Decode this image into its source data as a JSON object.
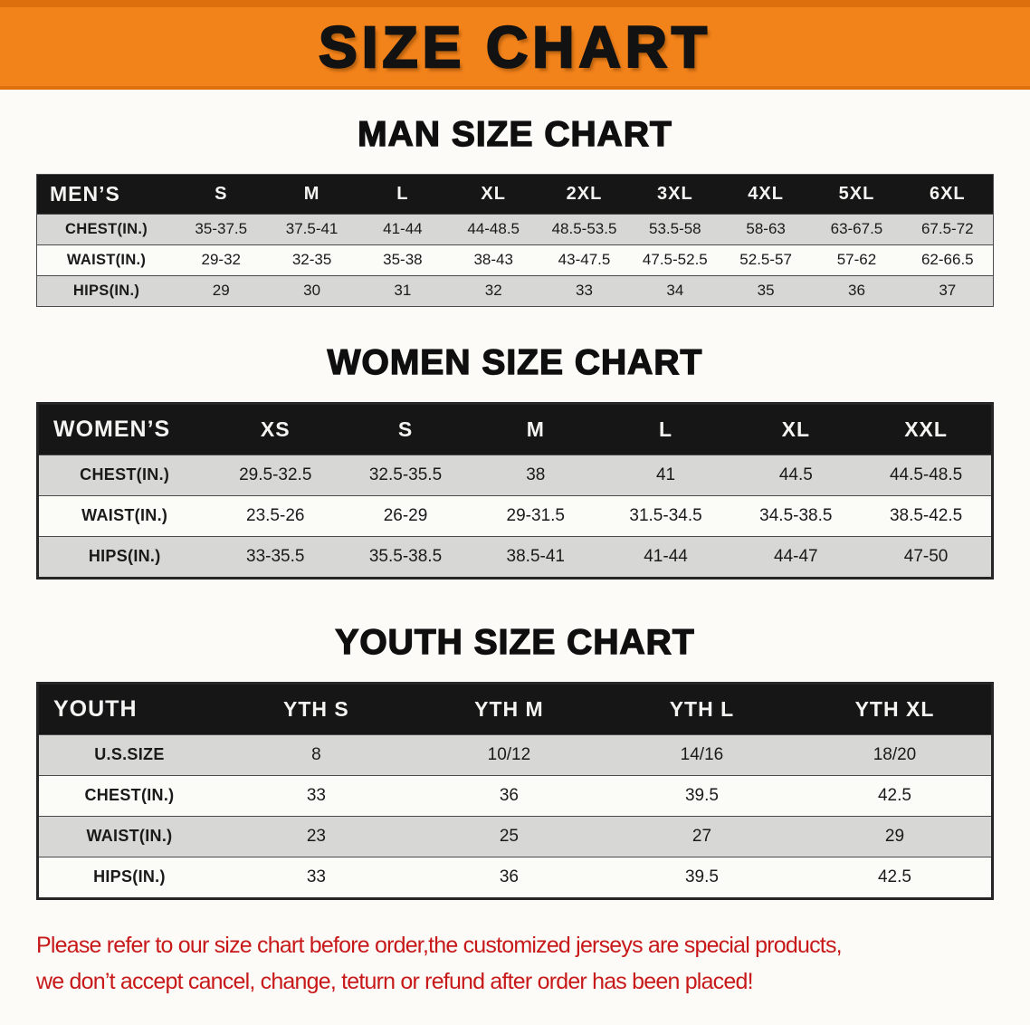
{
  "banner": {
    "title": "SIZE CHART"
  },
  "sections": [
    {
      "heading": "MAN SIZE CHART",
      "table_name": "men-size-table",
      "header": [
        "MEN’S",
        "S",
        "M",
        "L",
        "XL",
        "2XL",
        "3XL",
        "4XL",
        "5XL",
        "6XL"
      ],
      "rows": [
        [
          "CHEST(IN.)",
          "35-37.5",
          "37.5-41",
          "41-44",
          "44-48.5",
          "48.5-53.5",
          "53.5-58",
          "58-63",
          "63-67.5",
          "67.5-72"
        ],
        [
          "WAIST(IN.)",
          "29-32",
          "32-35",
          "35-38",
          "38-43",
          "43-47.5",
          "47.5-52.5",
          "52.5-57",
          "57-62",
          "62-66.5"
        ],
        [
          "HIPS(IN.)",
          "29",
          "30",
          "31",
          "32",
          "33",
          "34",
          "35",
          "36",
          "37"
        ]
      ]
    },
    {
      "heading": "WOMEN SIZE CHART",
      "table_name": "women-size-table",
      "header": [
        "WOMEN’S",
        "XS",
        "S",
        "M",
        "L",
        "XL",
        "XXL"
      ],
      "rows": [
        [
          "CHEST(IN.)",
          "29.5-32.5",
          "32.5-35.5",
          "38",
          "41",
          "44.5",
          "44.5-48.5"
        ],
        [
          "WAIST(IN.)",
          "23.5-26",
          "26-29",
          "29-31.5",
          "31.5-34.5",
          "34.5-38.5",
          "38.5-42.5"
        ],
        [
          "HIPS(IN.)",
          "33-35.5",
          "35.5-38.5",
          "38.5-41",
          "41-44",
          "44-47",
          "47-50"
        ]
      ]
    },
    {
      "heading": "YOUTH SIZE CHART",
      "table_name": "youth-size-table",
      "header": [
        "YOUTH",
        "YTH S",
        "YTH M",
        "YTH L",
        "YTH XL"
      ],
      "rows": [
        [
          "U.S.SIZE",
          "8",
          "10/12",
          "14/16",
          "18/20"
        ],
        [
          "CHEST(IN.)",
          "33",
          "36",
          "39.5",
          "42.5"
        ],
        [
          "WAIST(IN.)",
          "23",
          "25",
          "27",
          "29"
        ],
        [
          "HIPS(IN.)",
          "33",
          "36",
          "39.5",
          "42.5"
        ]
      ]
    }
  ],
  "footer_note": {
    "line1": "Please refer to our size chart before order,the customized jerseys are special products,",
    "line2": "we don’t accept cancel, change, teturn or refund after order has been placed!"
  },
  "colors": {
    "banner_orange": "#f2821a",
    "header_black": "#161616",
    "row_gray": "#d7d7d5",
    "note_red": "#c8191a"
  }
}
